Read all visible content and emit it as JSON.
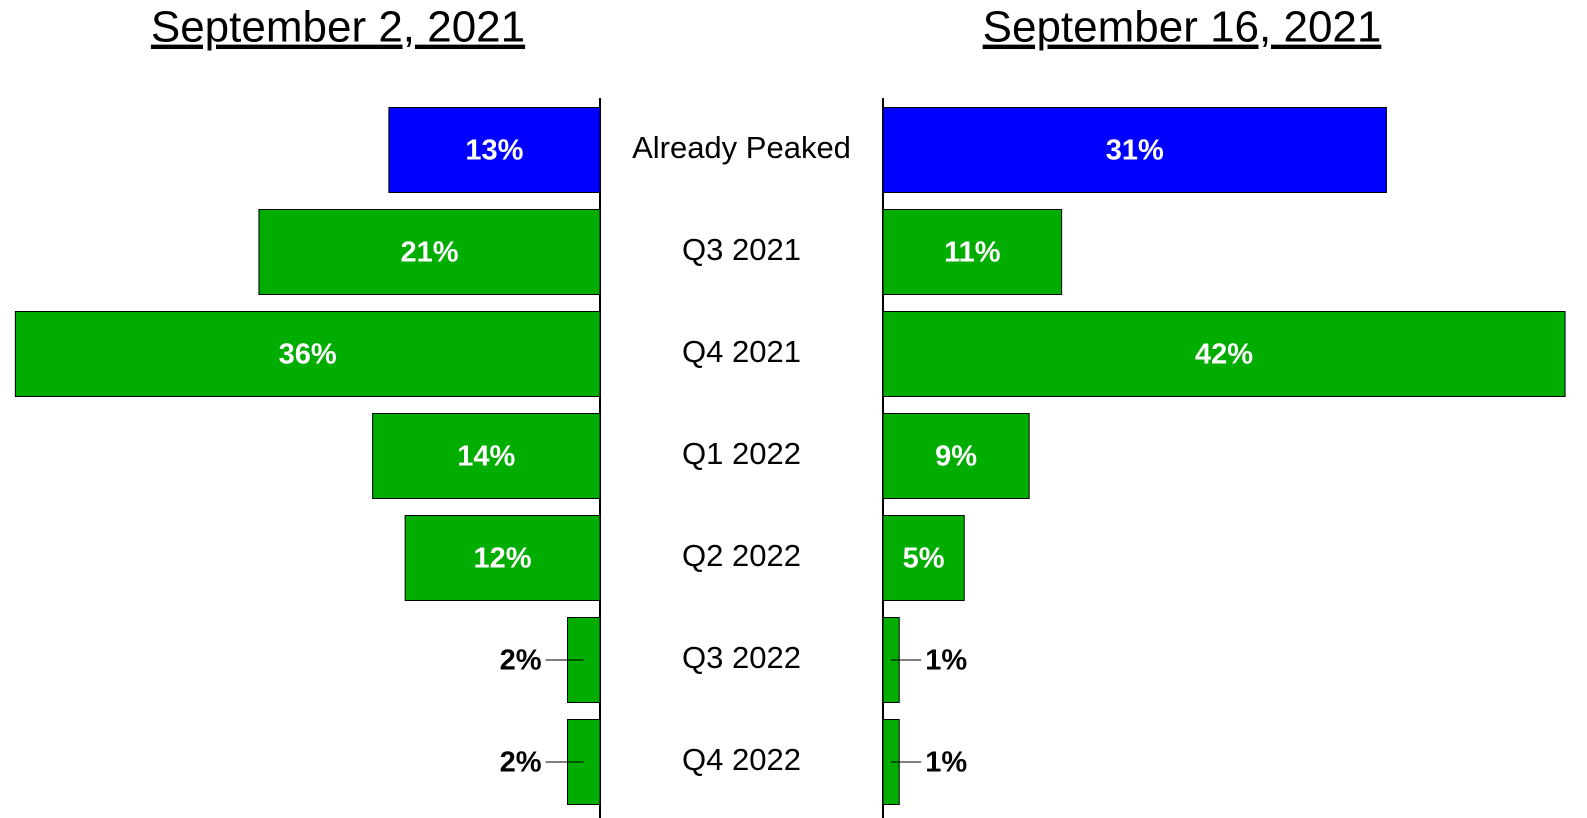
{
  "chart_data": {
    "type": "bar",
    "categories": [
      "Already Peaked",
      "Q3 2021",
      "Q4 2021",
      "Q1 2022",
      "Q2 2022",
      "Q3 2022",
      "Q4 2022"
    ],
    "series": [
      {
        "name": "September 2, 2021",
        "values": [
          13,
          21,
          36,
          14,
          12,
          2,
          2
        ],
        "value_labels": [
          "13%",
          "21%",
          "36%",
          "14%",
          "12%",
          "2%",
          "2%"
        ],
        "colors": [
          "#0000ff",
          "#00ad00",
          "#00ad00",
          "#00ad00",
          "#00ad00",
          "#00ad00",
          "#00ad00"
        ]
      },
      {
        "name": "September 16, 2021",
        "values": [
          31,
          11,
          42,
          9,
          5,
          1,
          1
        ],
        "value_labels": [
          "31%",
          "11%",
          "42%",
          "9%",
          "5%",
          "1%",
          "1%"
        ],
        "colors": [
          "#0000ff",
          "#00ad00",
          "#00ad00",
          "#00ad00",
          "#00ad00",
          "#00ad00",
          "#00ad00"
        ]
      }
    ]
  }
}
